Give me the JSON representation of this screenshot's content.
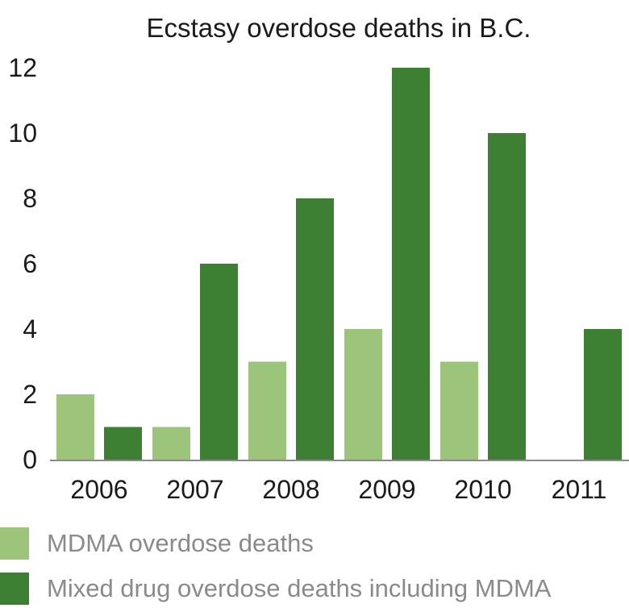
{
  "chart_data": {
    "type": "bar",
    "title": "Ecstasy overdose deaths in B.C.",
    "xlabel": "",
    "ylabel": "",
    "categories": [
      "2006",
      "2007",
      "2008",
      "2009",
      "2010",
      "2011"
    ],
    "series": [
      {
        "name": "MDMA overdose deaths",
        "color": "#9dc47b",
        "values": [
          2,
          1,
          3,
          4,
          3,
          0
        ]
      },
      {
        "name": "Mixed drug overdose deaths including MDMA",
        "color": "#3d7f33",
        "values": [
          1,
          6,
          8,
          12,
          10,
          4
        ]
      }
    ],
    "ylim": [
      0,
      12
    ],
    "yticks": [
      "0",
      "2",
      "4",
      "6",
      "8",
      "10",
      "12"
    ],
    "grid": false,
    "legend_position": "bottom"
  }
}
